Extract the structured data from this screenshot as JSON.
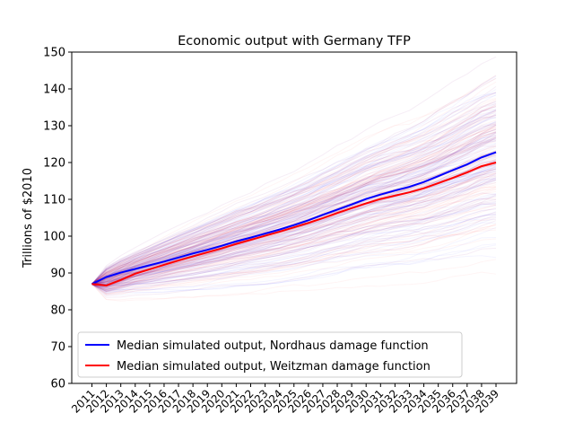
{
  "chart_data": {
    "type": "line",
    "title": "Economic output with Germany TFP",
    "xlabel": "",
    "ylabel": "Trillions of $2010",
    "x": [
      2011,
      2012,
      2013,
      2014,
      2015,
      2016,
      2017,
      2018,
      2019,
      2020,
      2021,
      2022,
      2023,
      2024,
      2025,
      2026,
      2027,
      2028,
      2029,
      2030,
      2031,
      2032,
      2033,
      2034,
      2035,
      2036,
      2037,
      2038,
      2039
    ],
    "x_tick_labels": [
      "2011",
      "2012",
      "2013",
      "2014",
      "2015",
      "2016",
      "2017",
      "2018",
      "2019",
      "2020",
      "2021",
      "2022",
      "2023",
      "2024",
      "2025",
      "2026",
      "2027",
      "2028",
      "2029",
      "2030",
      "2031",
      "2032",
      "2033",
      "2034",
      "2035",
      "2036",
      "2037",
      "2038",
      "2039"
    ],
    "y_ticks": [
      60,
      70,
      80,
      90,
      100,
      110,
      120,
      130,
      140,
      150
    ],
    "ylim": [
      60,
      150
    ],
    "grid": false,
    "legend_position": "lower-left",
    "series": [
      {
        "name": "Median simulated output, Nordhaus damage function",
        "color": "#0000ff",
        "values": [
          87.0,
          88.9,
          90.1,
          91.1,
          92.1,
          93.1,
          94.2,
          95.3,
          96.3,
          97.4,
          98.6,
          99.6,
          100.7,
          101.8,
          103.0,
          104.3,
          105.8,
          107.2,
          108.6,
          110.1,
          111.3,
          112.4,
          113.4,
          114.7,
          116.3,
          117.9,
          119.5,
          121.4,
          122.8
        ]
      },
      {
        "name": "Median simulated output, Weitzman damage function",
        "color": "#ff0000",
        "values": [
          87.0,
          86.6,
          88.1,
          89.8,
          91.0,
          92.2,
          93.4,
          94.5,
          95.6,
          96.7,
          97.9,
          99.0,
          100.1,
          101.2,
          102.4,
          103.6,
          104.9,
          106.3,
          107.6,
          108.9,
          110.1,
          111.0,
          111.9,
          113.0,
          114.4,
          115.8,
          117.3,
          119.0,
          120.0
        ]
      }
    ],
    "simulation_band": {
      "description_series": "individual simulated output paths",
      "colors": [
        "#0000ff",
        "#ff0000",
        "#800080"
      ]
    }
  }
}
